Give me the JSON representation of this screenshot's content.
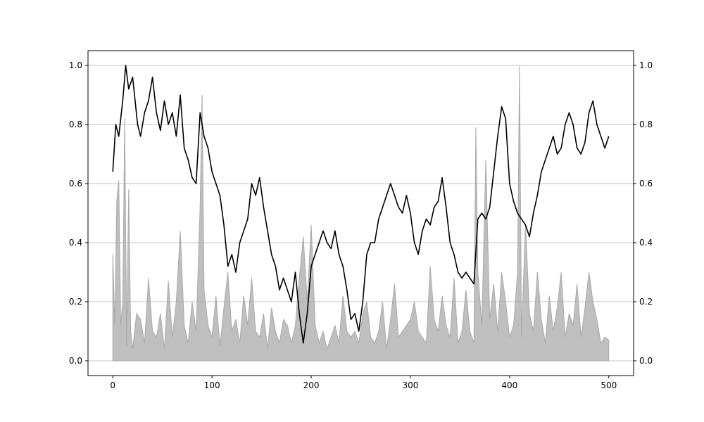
{
  "chart_data": {
    "type": "line",
    "title": "",
    "xlabel": "",
    "ylabel": "",
    "xlim": [
      -25,
      525
    ],
    "ylim": [
      -0.05,
      1.05
    ],
    "grid": {
      "y": true,
      "x": false
    },
    "x_ticks": [
      0,
      100,
      200,
      300,
      400,
      500
    ],
    "x_tick_labels": [
      "0",
      "100",
      "200",
      "300",
      "400",
      "500"
    ],
    "y_ticks": [
      0.0,
      0.2,
      0.4,
      0.6,
      0.8,
      1.0
    ],
    "y_tick_labels": [
      "0.0",
      "0.2",
      "0.4",
      "0.6",
      "0.8",
      "1.0"
    ],
    "right_y_tick_labels": [
      "0.0",
      "0.2",
      "0.4",
      "0.6",
      "0.8",
      "1.0"
    ],
    "series": [
      {
        "kind": "line",
        "color": "#000000",
        "x": [
          0,
          3,
          6,
          10,
          13,
          16,
          20,
          25,
          28,
          32,
          36,
          40,
          44,
          48,
          52,
          56,
          60,
          64,
          68,
          72,
          76,
          80,
          84,
          88,
          92,
          96,
          100,
          104,
          108,
          112,
          116,
          120,
          124,
          128,
          132,
          136,
          140,
          144,
          148,
          152,
          156,
          160,
          164,
          168,
          172,
          176,
          180,
          184,
          188,
          192,
          196,
          200,
          204,
          208,
          212,
          216,
          220,
          224,
          228,
          232,
          236,
          240,
          244,
          248,
          252,
          256,
          260,
          264,
          268,
          272,
          276,
          280,
          284,
          288,
          292,
          296,
          300,
          304,
          308,
          312,
          316,
          320,
          324,
          328,
          332,
          336,
          340,
          344,
          348,
          352,
          356,
          360,
          364,
          368,
          372,
          376,
          380,
          384,
          388,
          392,
          396,
          400,
          404,
          408,
          412,
          416,
          420,
          424,
          428,
          432,
          436,
          440,
          444,
          448,
          452,
          456,
          460,
          464,
          468,
          472,
          476,
          480,
          484,
          488,
          492,
          496,
          500
        ],
        "y": [
          0.64,
          0.8,
          0.76,
          0.88,
          1.0,
          0.92,
          0.96,
          0.8,
          0.76,
          0.84,
          0.88,
          0.96,
          0.84,
          0.78,
          0.88,
          0.8,
          0.84,
          0.76,
          0.9,
          0.72,
          0.68,
          0.62,
          0.6,
          0.84,
          0.76,
          0.72,
          0.64,
          0.6,
          0.56,
          0.46,
          0.32,
          0.36,
          0.3,
          0.4,
          0.44,
          0.48,
          0.6,
          0.56,
          0.62,
          0.52,
          0.44,
          0.36,
          0.32,
          0.24,
          0.28,
          0.24,
          0.2,
          0.3,
          0.16,
          0.06,
          0.16,
          0.32,
          0.36,
          0.4,
          0.44,
          0.4,
          0.38,
          0.44,
          0.36,
          0.32,
          0.24,
          0.14,
          0.16,
          0.1,
          0.2,
          0.36,
          0.4,
          0.4,
          0.48,
          0.52,
          0.56,
          0.6,
          0.56,
          0.52,
          0.5,
          0.56,
          0.5,
          0.4,
          0.36,
          0.44,
          0.48,
          0.46,
          0.52,
          0.54,
          0.62,
          0.52,
          0.4,
          0.36,
          0.3,
          0.28,
          0.3,
          0.28,
          0.26,
          0.48,
          0.5,
          0.48,
          0.52,
          0.64,
          0.76,
          0.86,
          0.82,
          0.6,
          0.54,
          0.5,
          0.48,
          0.46,
          0.42,
          0.5,
          0.56,
          0.64,
          0.68,
          0.72,
          0.76,
          0.7,
          0.72,
          0.8,
          0.84,
          0.8,
          0.72,
          0.7,
          0.74,
          0.84,
          0.88,
          0.8,
          0.76,
          0.72,
          0.76
        ]
      },
      {
        "kind": "area",
        "color": "#aaaaaa",
        "x": [
          0,
          2,
          4,
          6,
          8,
          10,
          12,
          14,
          16,
          18,
          20,
          24,
          28,
          32,
          36,
          40,
          44,
          48,
          52,
          56,
          60,
          64,
          68,
          72,
          76,
          80,
          84,
          88,
          90,
          92,
          96,
          100,
          104,
          108,
          112,
          116,
          120,
          124,
          128,
          132,
          136,
          140,
          144,
          148,
          152,
          156,
          160,
          164,
          168,
          172,
          176,
          180,
          184,
          188,
          192,
          196,
          200,
          204,
          208,
          212,
          216,
          220,
          224,
          228,
          232,
          236,
          240,
          244,
          248,
          252,
          256,
          260,
          264,
          268,
          272,
          276,
          280,
          284,
          288,
          292,
          296,
          300,
          304,
          308,
          312,
          316,
          320,
          324,
          328,
          332,
          336,
          340,
          344,
          348,
          352,
          356,
          360,
          364,
          366,
          368,
          372,
          376,
          380,
          384,
          388,
          392,
          396,
          400,
          404,
          408,
          410,
          412,
          416,
          420,
          424,
          428,
          432,
          436,
          440,
          444,
          448,
          452,
          456,
          460,
          464,
          468,
          472,
          476,
          480,
          484,
          488,
          492,
          496,
          500
        ],
        "y": [
          0.36,
          0.12,
          0.54,
          0.61,
          0.12,
          0.2,
          0.82,
          0.05,
          0.58,
          0.1,
          0.04,
          0.16,
          0.14,
          0.06,
          0.28,
          0.1,
          0.08,
          0.16,
          0.04,
          0.27,
          0.08,
          0.2,
          0.44,
          0.12,
          0.06,
          0.2,
          0.1,
          0.52,
          0.9,
          0.24,
          0.12,
          0.08,
          0.22,
          0.05,
          0.18,
          0.3,
          0.1,
          0.14,
          0.06,
          0.22,
          0.12,
          0.28,
          0.1,
          0.08,
          0.16,
          0.04,
          0.18,
          0.1,
          0.06,
          0.14,
          0.12,
          0.06,
          0.12,
          0.28,
          0.42,
          0.2,
          0.46,
          0.12,
          0.06,
          0.1,
          0.04,
          0.08,
          0.12,
          0.06,
          0.22,
          0.1,
          0.08,
          0.1,
          0.06,
          0.16,
          0.2,
          0.08,
          0.06,
          0.1,
          0.2,
          0.04,
          0.14,
          0.26,
          0.08,
          0.1,
          0.12,
          0.14,
          0.2,
          0.1,
          0.08,
          0.06,
          0.32,
          0.14,
          0.1,
          0.22,
          0.12,
          0.08,
          0.28,
          0.06,
          0.1,
          0.24,
          0.1,
          0.06,
          0.79,
          0.3,
          0.12,
          0.68,
          0.14,
          0.26,
          0.1,
          0.3,
          0.2,
          0.08,
          0.12,
          0.3,
          1.0,
          0.08,
          0.46,
          0.16,
          0.1,
          0.3,
          0.14,
          0.06,
          0.22,
          0.1,
          0.18,
          0.3,
          0.08,
          0.16,
          0.12,
          0.26,
          0.08,
          0.18,
          0.3,
          0.2,
          0.14,
          0.06,
          0.08,
          0.07
        ]
      }
    ]
  }
}
